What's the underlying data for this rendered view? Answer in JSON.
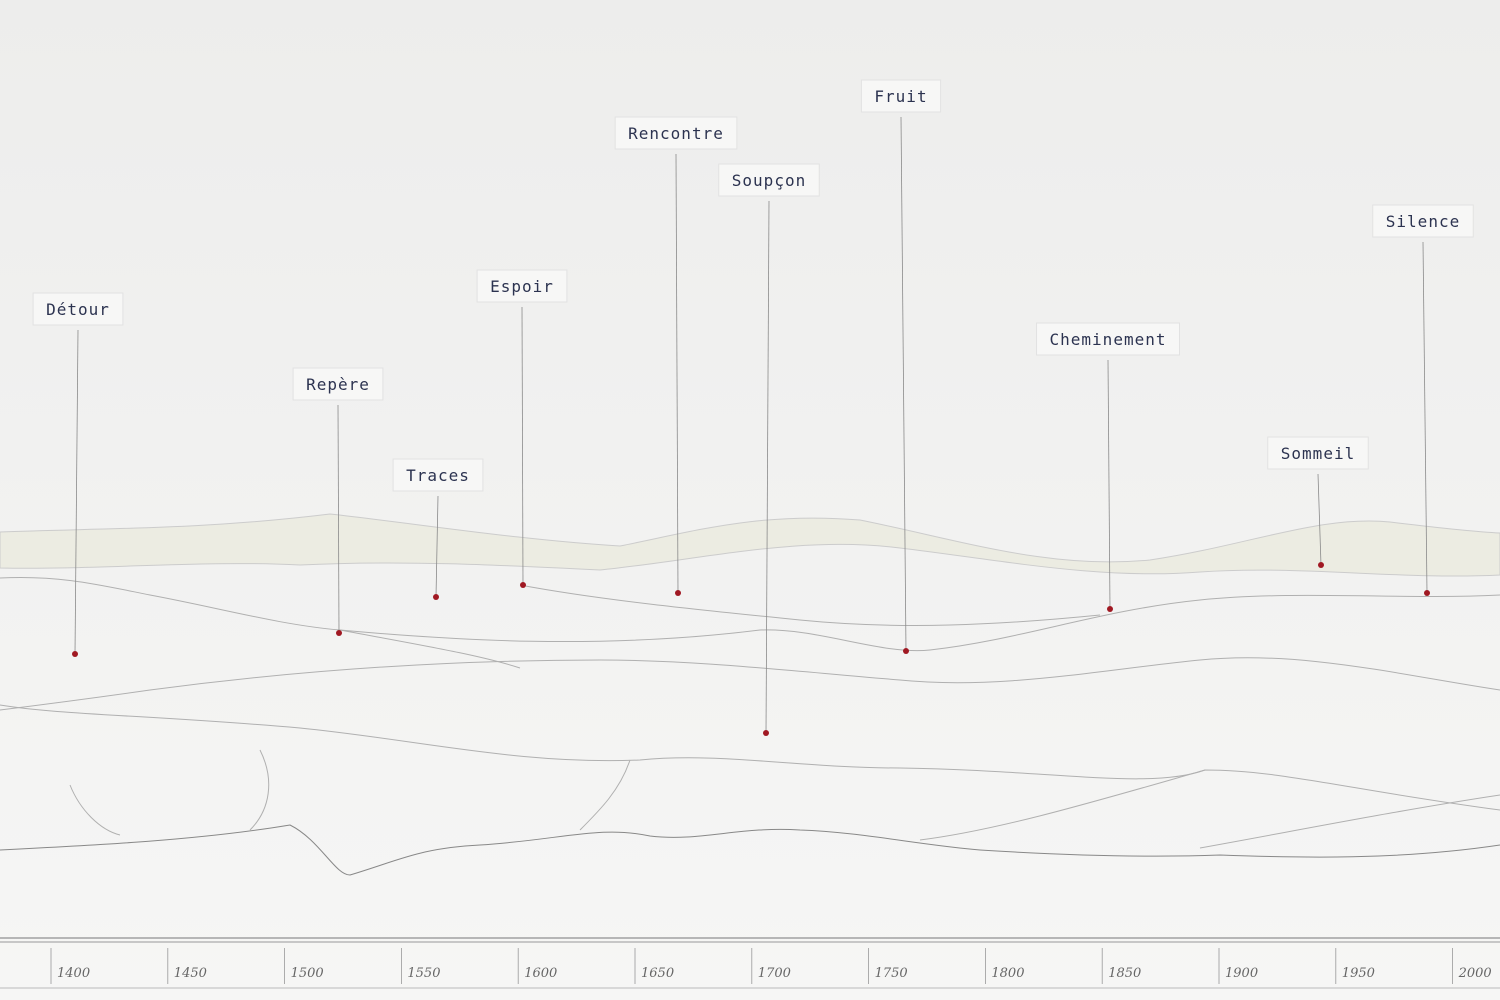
{
  "labels": [
    "Détour",
    "Repère",
    "Traces",
    "Espoir",
    "Rencontre",
    "Soupçon",
    "Fruit",
    "Cheminement",
    "Sommeil",
    "Silence"
  ],
  "timeline": {
    "ticks": [
      "1400",
      "1450",
      "1500",
      "1550",
      "1600",
      "1650",
      "1700",
      "1750",
      "1800",
      "1850",
      "1900",
      "1950",
      "2000"
    ]
  }
}
